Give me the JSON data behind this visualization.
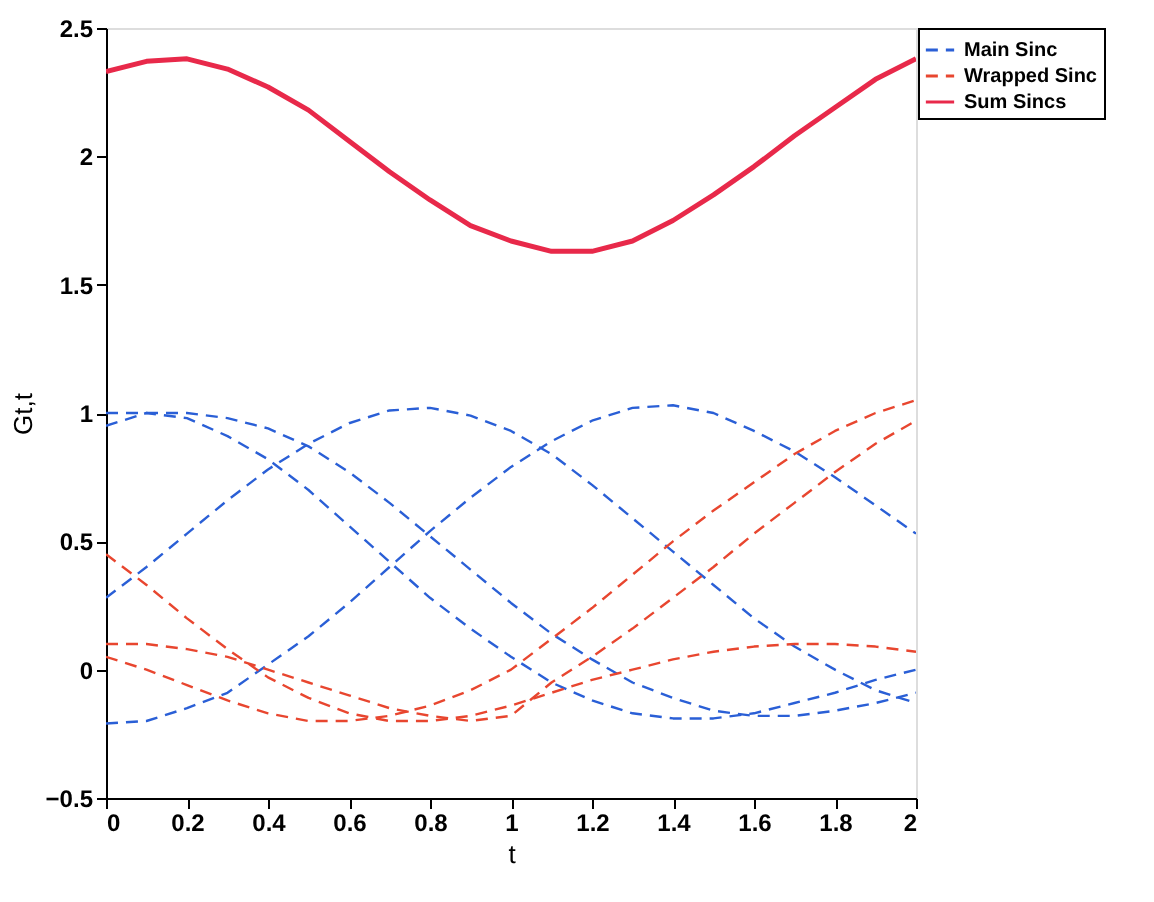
{
  "chart_data": {
    "type": "line",
    "xlabel": "t",
    "ylabel": "Gt,t",
    "xlim": [
      0,
      2
    ],
    "ylim": [
      -0.5,
      2.5
    ],
    "xticks": [
      0,
      0.2,
      0.4,
      0.6,
      0.8,
      1,
      1.2,
      1.4,
      1.6,
      1.8,
      2
    ],
    "yticks": [
      -0.5,
      0,
      0.5,
      1,
      1.5,
      2,
      2.5
    ],
    "x": [
      0,
      0.1,
      0.2,
      0.3,
      0.4,
      0.5,
      0.6,
      0.7,
      0.8,
      0.9,
      1,
      1.1,
      1.2,
      1.3,
      1.4,
      1.5,
      1.6,
      1.7,
      1.8,
      1.9,
      2
    ],
    "grid": false,
    "legend": "top right",
    "marker": "none",
    "series": [
      {
        "name": "Main Sinc",
        "color": "#2a5fd6",
        "line_style": "dashed",
        "values": [
          0.95,
          1.0,
          0.98,
          0.91,
          0.82,
          0.7,
          0.56,
          0.42,
          0.28,
          0.16,
          0.05,
          -0.05,
          -0.12,
          -0.17,
          -0.19,
          -0.19,
          -0.17,
          -0.13,
          -0.09,
          -0.04,
          0.0
        ]
      },
      {
        "color": "#2a5fd6",
        "line_style": "dashed",
        "values": [
          1.0,
          1.0,
          1.0,
          0.98,
          0.94,
          0.87,
          0.77,
          0.65,
          0.52,
          0.39,
          0.26,
          0.14,
          0.04,
          -0.05,
          -0.11,
          -0.16,
          -0.18,
          -0.18,
          -0.16,
          -0.13,
          -0.09
        ]
      },
      {
        "color": "#2a5fd6",
        "line_style": "dashed",
        "values": [
          0.28,
          0.4,
          0.53,
          0.66,
          0.78,
          0.88,
          0.96,
          1.01,
          1.02,
          0.99,
          0.93,
          0.84,
          0.72,
          0.59,
          0.46,
          0.33,
          0.2,
          0.09,
          0.0,
          -0.08,
          -0.13
        ]
      },
      {
        "color": "#2a5fd6",
        "line_style": "dashed",
        "values": [
          -0.21,
          -0.2,
          -0.15,
          -0.09,
          0.02,
          0.13,
          0.26,
          0.4,
          0.54,
          0.67,
          0.79,
          0.89,
          0.97,
          1.02,
          1.03,
          1.0,
          0.93,
          0.85,
          0.75,
          0.64,
          0.53
        ]
      },
      {
        "name": "Wrapped Sinc",
        "color": "#e8462f",
        "line_style": "dashed",
        "values": [
          0.45,
          0.33,
          0.2,
          0.08,
          -0.03,
          -0.11,
          -0.17,
          -0.2,
          -0.2,
          -0.18,
          -0.14,
          -0.09,
          -0.04,
          0.0,
          0.04,
          0.07,
          0.09,
          0.1,
          0.1,
          0.09,
          0.07
        ]
      },
      {
        "color": "#e8462f",
        "line_style": "dashed",
        "values": [
          0.05,
          0.0,
          -0.06,
          -0.12,
          -0.17,
          -0.2,
          -0.2,
          -0.18,
          -0.14,
          -0.08,
          0.0,
          0.12,
          0.24,
          0.37,
          0.5,
          0.62,
          0.73,
          0.84,
          0.93,
          1.0,
          1.05
        ]
      },
      {
        "color": "#e8462f",
        "line_style": "dashed",
        "values": [
          0.1,
          0.1,
          0.08,
          0.05,
          0.0,
          -0.05,
          -0.1,
          -0.15,
          -0.18,
          -0.2,
          -0.18,
          -0.05,
          0.05,
          0.16,
          0.28,
          0.4,
          0.53,
          0.65,
          0.77,
          0.88,
          0.97
        ]
      },
      {
        "name": "Sum Sincs",
        "color": "#e8294a",
        "line_style": "solid",
        "values": [
          2.33,
          2.37,
          2.38,
          2.34,
          2.27,
          2.18,
          2.06,
          1.94,
          1.83,
          1.73,
          1.67,
          1.63,
          1.63,
          1.67,
          1.75,
          1.85,
          1.96,
          2.08,
          2.19,
          2.3,
          2.38
        ]
      }
    ]
  }
}
